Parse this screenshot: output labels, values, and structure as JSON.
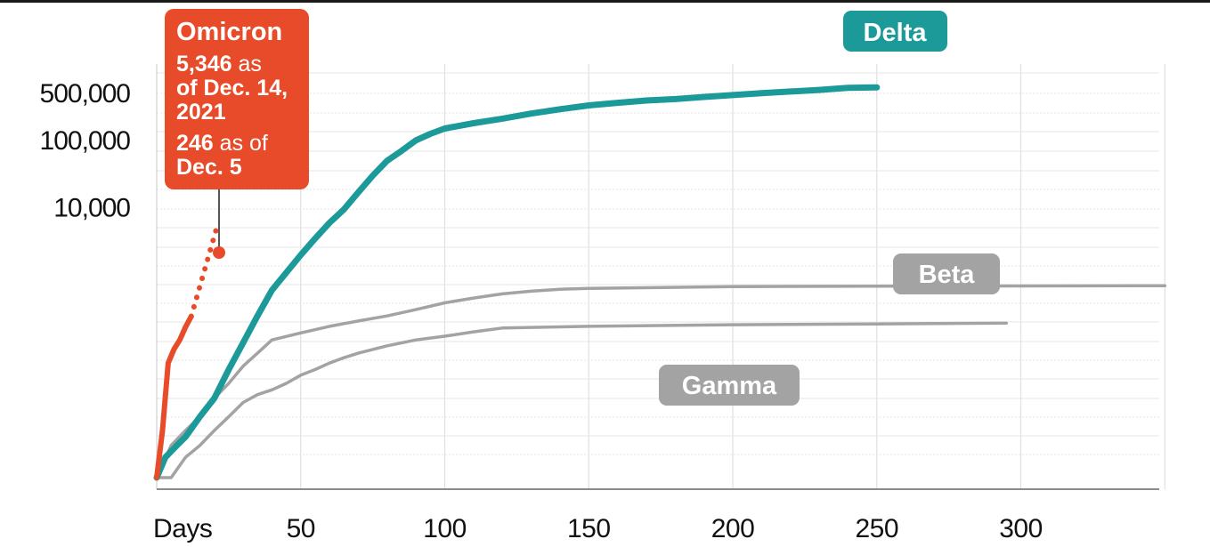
{
  "chart_data": {
    "type": "line",
    "title": "",
    "xlabel": "Days",
    "ylabel": "",
    "y_scale": "log",
    "grid": true,
    "x_ticks": [
      {
        "value": 0,
        "label": "Days"
      },
      {
        "value": 50,
        "label": "50"
      },
      {
        "value": 100,
        "label": "100"
      },
      {
        "value": 150,
        "label": "150"
      },
      {
        "value": 200,
        "label": "200"
      },
      {
        "value": 250,
        "label": "250"
      },
      {
        "value": 300,
        "label": "300"
      }
    ],
    "y_ticks": [
      {
        "value": 10000,
        "label": "10,000"
      },
      {
        "value": 100000,
        "label": "100,000"
      },
      {
        "value": 500000,
        "label": "500,000"
      }
    ],
    "xlim": [
      0,
      350
    ],
    "ylim": [
      1,
      1000000
    ],
    "series": [
      {
        "name": "Delta",
        "color": "#1c9a9a",
        "style": "solid",
        "points": [
          [
            0,
            1
          ],
          [
            3,
            2
          ],
          [
            7,
            3
          ],
          [
            10,
            4
          ],
          [
            15,
            8
          ],
          [
            20,
            15
          ],
          [
            25,
            40
          ],
          [
            30,
            100
          ],
          [
            35,
            250
          ],
          [
            40,
            600
          ],
          [
            45,
            1100
          ],
          [
            50,
            2000
          ],
          [
            55,
            3500
          ],
          [
            60,
            6000
          ],
          [
            65,
            9500
          ],
          [
            70,
            17000
          ],
          [
            75,
            30000
          ],
          [
            80,
            50000
          ],
          [
            85,
            70000
          ],
          [
            90,
            100000
          ],
          [
            95,
            125000
          ],
          [
            100,
            150000
          ],
          [
            110,
            180000
          ],
          [
            120,
            210000
          ],
          [
            130,
            250000
          ],
          [
            140,
            290000
          ],
          [
            150,
            330000
          ],
          [
            160,
            360000
          ],
          [
            170,
            390000
          ],
          [
            180,
            410000
          ],
          [
            190,
            440000
          ],
          [
            200,
            470000
          ],
          [
            210,
            500000
          ],
          [
            220,
            530000
          ],
          [
            230,
            560000
          ],
          [
            240,
            600000
          ],
          [
            250,
            610000
          ]
        ]
      },
      {
        "name": "Beta",
        "color": "#a3a3a3",
        "style": "solid",
        "points": [
          [
            0,
            1
          ],
          [
            5,
            3
          ],
          [
            10,
            5
          ],
          [
            15,
            8
          ],
          [
            20,
            15
          ],
          [
            25,
            25
          ],
          [
            30,
            45
          ],
          [
            35,
            70
          ],
          [
            40,
            110
          ],
          [
            50,
            140
          ],
          [
            60,
            175
          ],
          [
            70,
            210
          ],
          [
            80,
            250
          ],
          [
            90,
            310
          ],
          [
            100,
            390
          ],
          [
            110,
            460
          ],
          [
            120,
            530
          ],
          [
            130,
            580
          ],
          [
            140,
            620
          ],
          [
            150,
            640
          ],
          [
            175,
            660
          ],
          [
            200,
            680
          ],
          [
            250,
            690
          ],
          [
            300,
            695
          ],
          [
            350,
            700
          ]
        ]
      },
      {
        "name": "Gamma",
        "color": "#a3a3a3",
        "style": "solid",
        "points": [
          [
            0,
            1
          ],
          [
            5,
            1
          ],
          [
            10,
            2
          ],
          [
            15,
            3
          ],
          [
            20,
            5
          ],
          [
            25,
            8
          ],
          [
            30,
            13
          ],
          [
            35,
            17
          ],
          [
            40,
            20
          ],
          [
            45,
            25
          ],
          [
            50,
            33
          ],
          [
            55,
            40
          ],
          [
            60,
            50
          ],
          [
            65,
            60
          ],
          [
            70,
            70
          ],
          [
            80,
            90
          ],
          [
            90,
            110
          ],
          [
            100,
            125
          ],
          [
            110,
            145
          ],
          [
            120,
            165
          ],
          [
            150,
            175
          ],
          [
            200,
            185
          ],
          [
            250,
            190
          ],
          [
            295,
            195
          ]
        ]
      },
      {
        "name": "Omicron",
        "color": "#e84b2a",
        "style": "solid",
        "points": [
          [
            0,
            1
          ],
          [
            2,
            5
          ],
          [
            4,
            50
          ],
          [
            6,
            80
          ],
          [
            8,
            110
          ],
          [
            10,
            170
          ],
          [
            12,
            246
          ]
        ]
      },
      {
        "name": "Omicron",
        "color": "#e84b2a",
        "style": "dotted",
        "points": [
          [
            12,
            246
          ],
          [
            21,
            5346
          ]
        ]
      }
    ],
    "labels": {
      "delta": "Delta",
      "beta": "Beta",
      "gamma": "Gamma",
      "omicron": {
        "title": "Omicron",
        "line1_bold": "5,346",
        "line1_rest": " as",
        "line2": "of Dec. 14,",
        "line3": "2021",
        "line4_bold": "246",
        "line4_rest": " as of",
        "line5": "Dec. 5"
      }
    }
  }
}
